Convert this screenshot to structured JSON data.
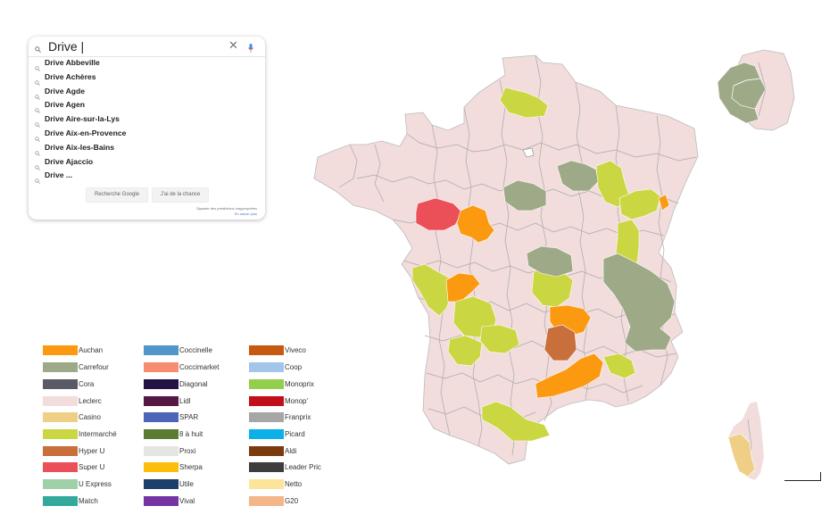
{
  "search": {
    "query": "Drive |",
    "suggestions": [
      "Drive Abbeville",
      "Drive Achères",
      "Drive Agde",
      "Drive Agen",
      "Drive Aire-sur-la-Lys",
      "Drive Aix-en-Provence",
      "Drive Aix-les-Bains",
      "Drive Ajaccio",
      "Drive ..."
    ],
    "google_search_label": "Recherche Google",
    "lucky_label": "J'ai de la chance",
    "report_text": "Signaler des prédictions inappropriées",
    "more_text": "En savoir plus"
  },
  "legend": [
    {
      "label": "Auchan",
      "color": "#fb9a10"
    },
    {
      "label": "Carrefour",
      "color": "#9eaa87"
    },
    {
      "label": "Cora",
      "color": "#5a5966"
    },
    {
      "label": "Leclerc",
      "color": "#f2dcdc"
    },
    {
      "label": "Casino",
      "color": "#efcf86"
    },
    {
      "label": "Intermarché",
      "color": "#cbd742"
    },
    {
      "label": "Hyper U",
      "color": "#c96f3b"
    },
    {
      "label": "Super U",
      "color": "#eb5058"
    },
    {
      "label": "U Express",
      "color": "#9fd0a8"
    },
    {
      "label": "Match",
      "color": "#33a99c"
    },
    {
      "label": "Coccinelle",
      "color": "#4f97c9"
    },
    {
      "label": "Coccimarket",
      "color": "#f88c72"
    },
    {
      "label": "Diagonal",
      "color": "#241245"
    },
    {
      "label": "Lidl",
      "color": "#541945"
    },
    {
      "label": "SPAR",
      "color": "#4b65b8"
    },
    {
      "label": "8 à huit",
      "color": "#5c7c33"
    },
    {
      "label": "Proxi",
      "color": "#e5e5e1"
    },
    {
      "label": "Sherpa",
      "color": "#fcbe0d"
    },
    {
      "label": "Utile",
      "color": "#1d3f6b"
    },
    {
      "label": "Vival",
      "color": "#7534a3"
    },
    {
      "label": "Viveco",
      "color": "#c65a10"
    },
    {
      "label": "Coop",
      "color": "#a3c5ea"
    },
    {
      "label": "Monoprix",
      "color": "#93cf4c"
    },
    {
      "label": "Monop'",
      "color": "#c0101b"
    },
    {
      "label": "Franprix",
      "color": "#a6a6a6"
    },
    {
      "label": "Picard",
      "color": "#0bb0e8"
    },
    {
      "label": "Aldi",
      "color": "#7b3b0f"
    },
    {
      "label": "Leader Pric",
      "color": "#3d3d3d"
    },
    {
      "label": "Netto",
      "color": "#fce59b"
    },
    {
      "label": "G20",
      "color": "#f4b588"
    }
  ],
  "map": {
    "base_color": "#f2dcdc",
    "border_color": "#a9a9a9",
    "regions": [
      {
        "brand": "Intermarché",
        "color": "#cbd742"
      },
      {
        "brand": "Carrefour",
        "color": "#9eaa87"
      },
      {
        "brand": "Carrefour",
        "color": "#9eaa87"
      },
      {
        "brand": "Intermarché",
        "color": "#cbd742"
      },
      {
        "brand": "Intermarché",
        "color": "#cbd742"
      },
      {
        "brand": "Auchan",
        "color": "#fb9a10"
      },
      {
        "brand": "Super U",
        "color": "#eb5058"
      },
      {
        "brand": "Auchan",
        "color": "#fb9a10"
      },
      {
        "brand": "Intermarché",
        "color": "#cbd742"
      },
      {
        "brand": "Carrefour",
        "color": "#9eaa87"
      },
      {
        "brand": "Intermarché",
        "color": "#cbd742"
      },
      {
        "brand": "Auchan",
        "color": "#fb9a10"
      },
      {
        "brand": "Intermarché",
        "color": "#cbd742"
      },
      {
        "brand": "Carrefour",
        "color": "#9eaa87"
      },
      {
        "brand": "Carrefour",
        "color": "#9eaa87"
      },
      {
        "brand": "Intermarché",
        "color": "#cbd742"
      },
      {
        "brand": "Auchan",
        "color": "#fb9a10"
      },
      {
        "brand": "Intermarché",
        "color": "#cbd742"
      },
      {
        "brand": "Hyper U",
        "color": "#c96f3b"
      },
      {
        "brand": "Auchan",
        "color": "#fb9a10"
      },
      {
        "brand": "Intermarché",
        "color": "#cbd742"
      },
      {
        "brand": "Intermarché",
        "color": "#cbd742"
      },
      {
        "brand": "Intermarché",
        "color": "#cbd742"
      },
      {
        "brand": "Carrefour",
        "color": "#9eaa87"
      },
      {
        "brand": "Casino",
        "color": "#efcf86"
      }
    ]
  }
}
